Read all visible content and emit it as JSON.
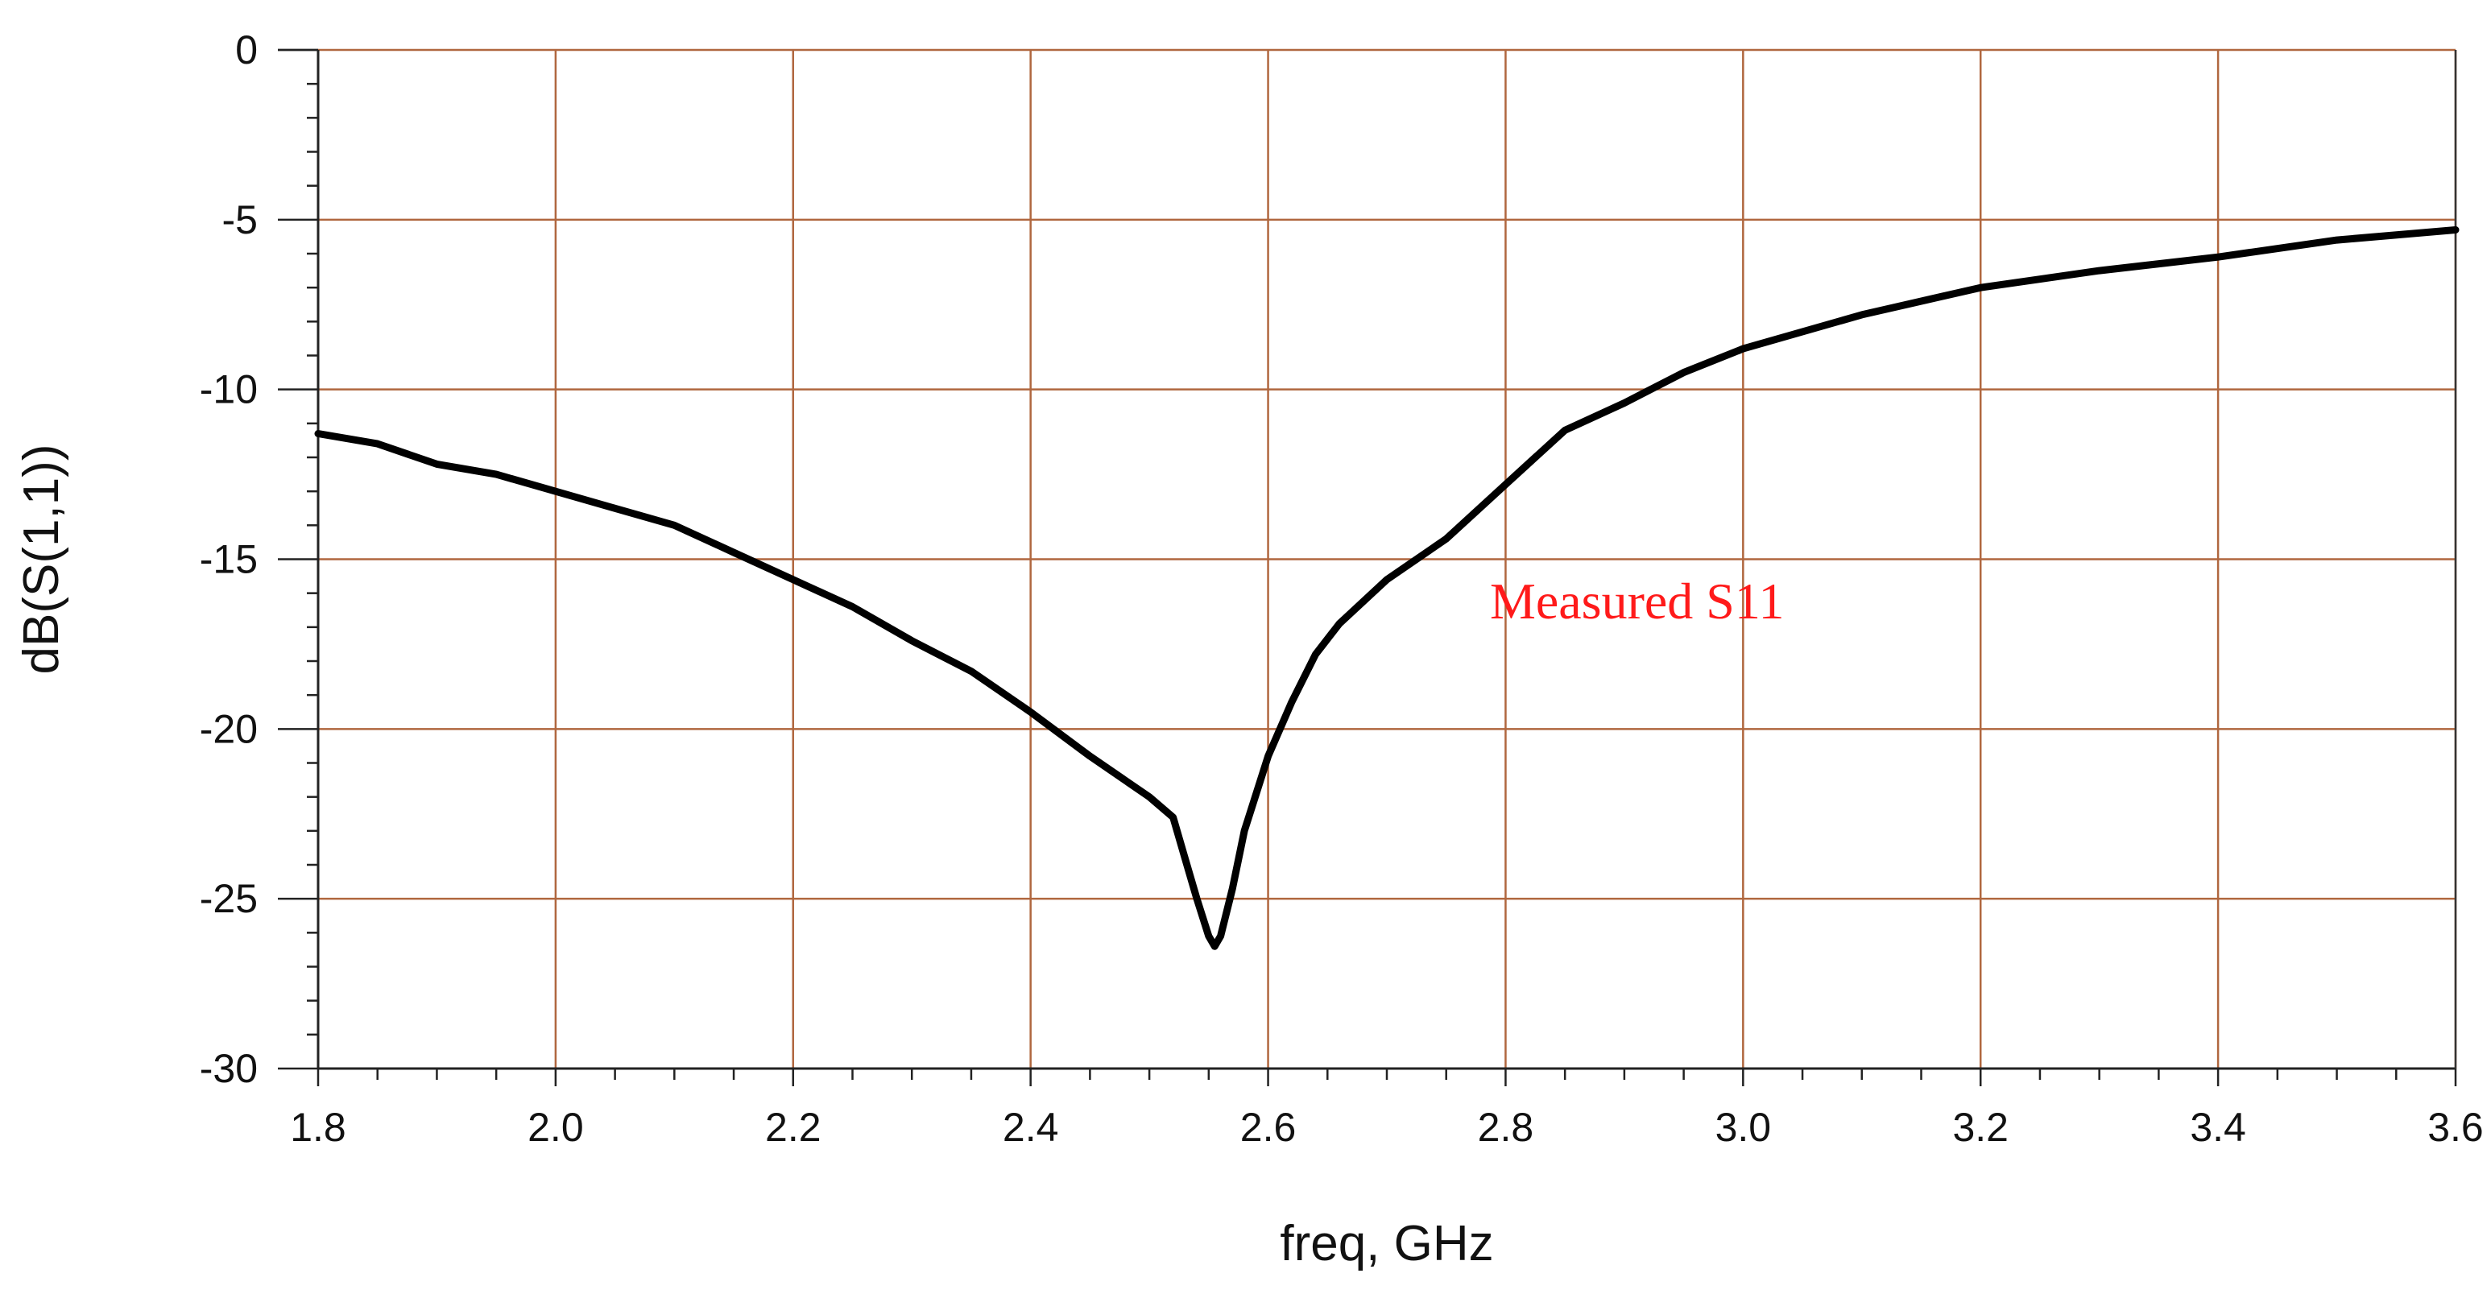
{
  "chart_data": {
    "type": "line",
    "title": "",
    "xlabel": "freq, GHz",
    "ylabel": "dB(S(1,1))",
    "xlim": [
      1.8,
      3.6
    ],
    "ylim": [
      -30,
      0
    ],
    "x_ticks": [
      1.8,
      2.0,
      2.2,
      2.4,
      2.6,
      2.8,
      3.0,
      3.2,
      3.4,
      3.6
    ],
    "x_tick_labels": [
      "1.8",
      "2.0",
      "2.2",
      "2.4",
      "2.6",
      "2.8",
      "3.0",
      "3.2",
      "3.4",
      "3.6"
    ],
    "y_ticks": [
      0,
      -5,
      -10,
      -15,
      -20,
      -25,
      -30
    ],
    "y_tick_labels": [
      "0",
      "-5",
      "-10",
      "-15",
      "-20",
      "-25",
      "-30"
    ],
    "x_minor_step": 0.05,
    "y_minor_step": 1,
    "grid": true,
    "annotation": {
      "text": "Measured S11",
      "x": 2.78,
      "y": -15.8
    },
    "series": [
      {
        "name": "Measured S11",
        "color": "#000000",
        "x": [
          1.8,
          1.85,
          1.9,
          1.95,
          2.0,
          2.05,
          2.1,
          2.15,
          2.2,
          2.25,
          2.3,
          2.35,
          2.4,
          2.45,
          2.5,
          2.52,
          2.53,
          2.54,
          2.55,
          2.555,
          2.56,
          2.57,
          2.58,
          2.6,
          2.62,
          2.64,
          2.66,
          2.7,
          2.75,
          2.8,
          2.85,
          2.9,
          2.95,
          3.0,
          3.1,
          3.2,
          3.3,
          3.4,
          3.5,
          3.6
        ],
        "y": [
          -11.3,
          -11.6,
          -12.2,
          -12.5,
          -13.0,
          -13.5,
          -14.0,
          -14.8,
          -15.6,
          -16.4,
          -17.4,
          -18.3,
          -19.5,
          -20.8,
          -22.0,
          -22.6,
          -23.8,
          -25.0,
          -26.1,
          -26.4,
          -26.1,
          -24.7,
          -23.0,
          -20.8,
          -19.2,
          -17.8,
          -16.9,
          -15.6,
          -14.4,
          -12.8,
          -11.2,
          -10.4,
          -9.5,
          -8.8,
          -7.8,
          -7.0,
          -6.5,
          -6.1,
          -5.6,
          -5.3
        ]
      }
    ]
  }
}
